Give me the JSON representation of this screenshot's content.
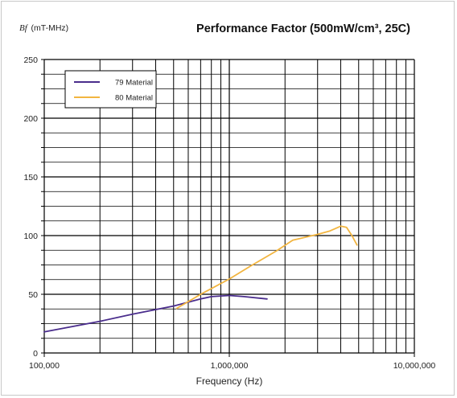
{
  "chart_data": {
    "type": "line",
    "title": "Performance Factor (500mW/cm³, 25C)",
    "ylabel_var": "Bf",
    "ylabel_unit": "(mT-MHz)",
    "xlabel": "Frequency (Hz)",
    "x_scale": "log",
    "xlim": [
      100000,
      10000000
    ],
    "ylim": [
      0,
      250
    ],
    "x_ticks": [
      100000,
      1000000,
      10000000
    ],
    "x_tick_labels": [
      "100,000",
      "1,000,000",
      "10,000,000"
    ],
    "y_ticks": [
      0,
      50,
      100,
      150,
      200,
      250
    ],
    "y_tick_labels": [
      "0",
      "50",
      "100",
      "150",
      "200",
      "250"
    ],
    "grid": true,
    "legend_position": "top-left",
    "series": [
      {
        "name": "79 Material",
        "color": "#4a2d8c",
        "x": [
          100000,
          200000,
          300000,
          500000,
          700000,
          800000,
          1000000,
          1200000,
          1600000
        ],
        "y": [
          18,
          27,
          33,
          40,
          46,
          48,
          49,
          48,
          46
        ]
      },
      {
        "name": "80 Material",
        "color": "#f2b540",
        "x": [
          520000,
          700000,
          1000000,
          1300000,
          1800000,
          2200000,
          3000000,
          3500000,
          4000000,
          4300000,
          4600000,
          4900000
        ],
        "y": [
          38,
          50,
          63,
          74,
          87,
          96,
          101,
          104,
          108,
          107,
          100,
          92
        ]
      }
    ]
  }
}
